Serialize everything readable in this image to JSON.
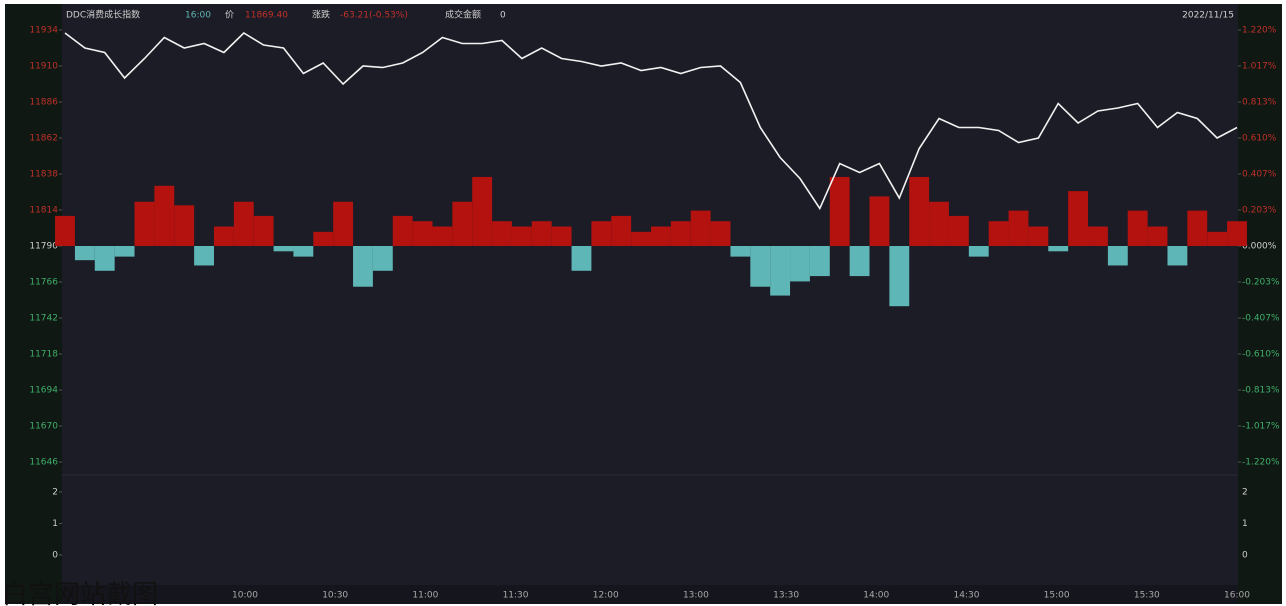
{
  "chart_data": {
    "type": "line",
    "header": {
      "name": "DDC消费成长指数",
      "time": "16:00",
      "price_label": "价",
      "price": "11869.40",
      "change_label": "涨跌",
      "change": "-63.21(-0.53%)",
      "amount_label": "成交金额",
      "amount": "0"
    },
    "date": "2022/11/15",
    "caption": "白宫网站截图",
    "xtick_labels": [
      "10:00",
      "10:30",
      "11:00",
      "11:30",
      "12:00",
      "13:00",
      "13:30",
      "14:00",
      "14:30",
      "15:00",
      "15:30",
      "16:00"
    ],
    "line": {
      "color": "#f2f2f2",
      "values": [
        11932,
        11922,
        11919,
        11902,
        11915,
        11929,
        11922,
        11925,
        11919,
        11932,
        11924,
        11922,
        11905,
        11912,
        11898,
        11910,
        11909,
        11912,
        11919,
        11929,
        11925,
        11925,
        11927,
        11915,
        11922,
        11915,
        11913,
        11910,
        11912,
        11907,
        11909,
        11905,
        11909,
        11910,
        11899,
        11869,
        11849,
        11835,
        11815,
        11845,
        11839,
        11845,
        11822,
        11855,
        11875,
        11869,
        11869,
        11867,
        11859,
        11862,
        11885,
        11872,
        11880,
        11882,
        11885,
        11869,
        11879,
        11875,
        11862,
        11869
      ]
    },
    "bars": {
      "axis": "y2",
      "up_color": "#b3120f",
      "down_color": "#5fb6b6",
      "values": [
        0.17,
        -0.08,
        -0.14,
        -0.06,
        0.25,
        0.34,
        0.23,
        -0.11,
        0.11,
        0.25,
        0.17,
        -0.03,
        -0.06,
        0.08,
        0.25,
        -0.23,
        -0.14,
        0.17,
        0.14,
        0.11,
        0.25,
        0.39,
        0.14,
        0.11,
        0.14,
        0.11,
        -0.14,
        0.14,
        0.17,
        0.08,
        0.11,
        0.14,
        0.2,
        0.14,
        -0.06,
        -0.23,
        -0.28,
        -0.2,
        -0.17,
        0.39,
        -0.17,
        0.28,
        -0.34,
        0.39,
        0.25,
        0.17,
        -0.06,
        0.14,
        0.2,
        0.11,
        -0.03,
        0.31,
        0.11,
        -0.11,
        0.2,
        0.11,
        -0.11,
        0.2,
        0.08,
        0.14
      ]
    },
    "ylim": [
      11646,
      11934
    ],
    "yticks": [
      11934,
      11910,
      11886,
      11862,
      11838,
      11814,
      11790,
      11766,
      11742,
      11718,
      11694,
      11670,
      11646
    ],
    "y2lim": [
      -1.22,
      1.22
    ],
    "y2ticks": [
      {
        "value": 1.22,
        "label": "1.220%"
      },
      {
        "value": 1.017,
        "label": "1.017%"
      },
      {
        "value": 0.813,
        "label": "0.813%"
      },
      {
        "value": 0.61,
        "label": "0.610%"
      },
      {
        "value": 0.407,
        "label": "0.407%"
      },
      {
        "value": 0.203,
        "label": "0.203%"
      },
      {
        "value": 0,
        "label": "0.000%"
      },
      {
        "value": -0.203,
        "label": "-0.203%"
      },
      {
        "value": -0.407,
        "label": "-0.407%"
      },
      {
        "value": -0.61,
        "label": "-0.610%"
      },
      {
        "value": -0.813,
        "label": "-0.813%"
      },
      {
        "value": -1.017,
        "label": "-1.017%"
      },
      {
        "value": -1.22,
        "label": "-1.220%"
      }
    ],
    "sub_ylim": [
      0,
      2
    ],
    "sub_yticks": [
      2,
      1,
      0
    ]
  }
}
